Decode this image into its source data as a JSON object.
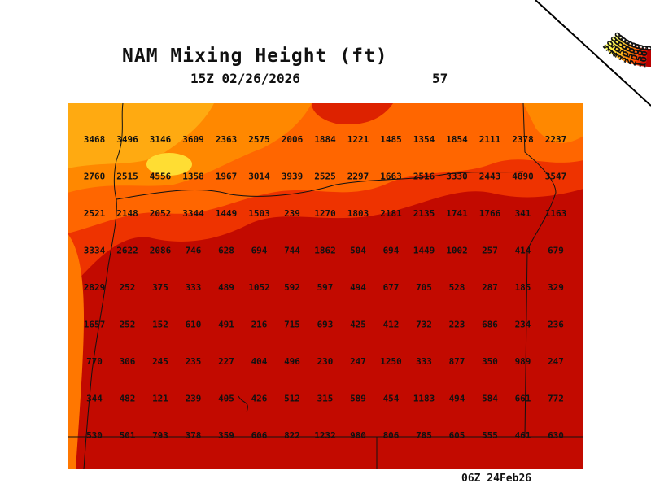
{
  "title": "NAM Mixing Height (ft)",
  "valid_time": "15Z 02/26/2026",
  "frame_number": "57",
  "model_run": "06Z 24Feb26",
  "colorbar": {
    "labels": [
      "5000",
      "4500",
      "4000",
      "3500",
      "3000",
      "2500",
      "2000",
      "1500",
      "1000",
      "0"
    ],
    "colors": [
      "#ffff66",
      "#ffee44",
      "#ffd633",
      "#ffbb22",
      "#ff9911",
      "#ff7700",
      "#ff5500",
      "#ee3300",
      "#dd1100",
      "#b80000"
    ]
  },
  "grid_values": [
    [
      "3468",
      "3496",
      "3146",
      "3609",
      "2363",
      "2575",
      "2006",
      "1884",
      "1221",
      "1485",
      "1354",
      "1854",
      "2111",
      "2378",
      "2237"
    ],
    [
      "2760",
      "2515",
      "4556",
      "1358",
      "1967",
      "3014",
      "3939",
      "2525",
      "2297",
      "1663",
      "2516",
      "3330",
      "2443",
      "4890",
      "3547"
    ],
    [
      "2521",
      "2148",
      "2052",
      "3344",
      "1449",
      "1503",
      "239",
      "1270",
      "1803",
      "2181",
      "2135",
      "1741",
      "1766",
      "341",
      "1163"
    ],
    [
      "3334",
      "2622",
      "2086",
      "746",
      "628",
      "694",
      "744",
      "1862",
      "504",
      "694",
      "1449",
      "1002",
      "257",
      "414",
      "679"
    ],
    [
      "2829",
      "252",
      "375",
      "333",
      "489",
      "1052",
      "592",
      "597",
      "494",
      "677",
      "705",
      "528",
      "287",
      "185",
      "329"
    ],
    [
      "1657",
      "252",
      "152",
      "610",
      "491",
      "216",
      "715",
      "693",
      "425",
      "412",
      "732",
      "223",
      "686",
      "234",
      "236"
    ],
    [
      "770",
      "306",
      "245",
      "235",
      "227",
      "404",
      "496",
      "230",
      "247",
      "1250",
      "333",
      "877",
      "350",
      "989",
      "247"
    ],
    [
      "344",
      "482",
      "121",
      "239",
      "405",
      "426",
      "512",
      "315",
      "589",
      "454",
      "1183",
      "494",
      "584",
      "661",
      "772"
    ],
    [
      "530",
      "501",
      "793",
      "378",
      "359",
      "606",
      "822",
      "1232",
      "980",
      "806",
      "785",
      "605",
      "555",
      "461",
      "630"
    ]
  ]
}
